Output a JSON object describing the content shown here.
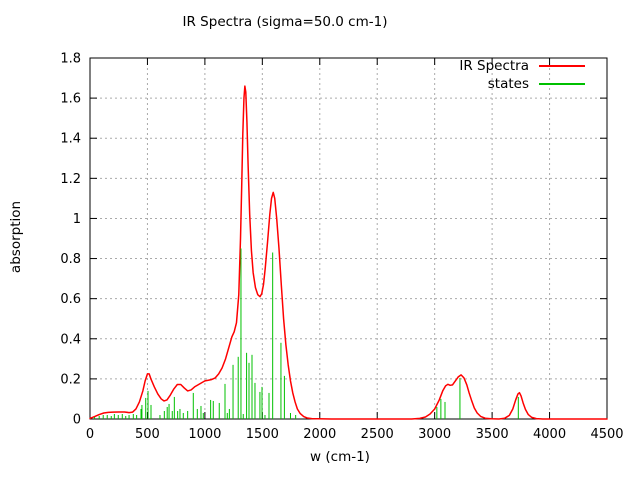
{
  "title": "IR Spectra (sigma=50.0 cm-1)",
  "axes": {
    "xlabel": "w (cm-1)",
    "ylabel": "absorption"
  },
  "colors": {
    "curve": "#ff0000",
    "states": "#00c000",
    "grid": "#aaaaaa",
    "border": "#000000",
    "background": "#ffffff"
  },
  "chart_data": {
    "type": "line",
    "title": "IR Spectra (sigma=50.0 cm-1)",
    "xlabel": "w (cm-1)",
    "ylabel": "absorption",
    "xlim": [
      0,
      4500
    ],
    "ylim": [
      0,
      1.8
    ],
    "x_ticks": [
      0,
      500,
      1000,
      1500,
      2000,
      2500,
      3000,
      3500,
      4000,
      4500
    ],
    "y_ticks": [
      0,
      0.2,
      0.4,
      0.6,
      0.8,
      1,
      1.2,
      1.4,
      1.6,
      1.8
    ],
    "grid": true,
    "legend_position": "top-right-inside",
    "series": [
      {
        "name": "IR Spectra",
        "type": "line",
        "color": "#ff0000",
        "points": [
          [
            0,
            0.003
          ],
          [
            40,
            0.012
          ],
          [
            80,
            0.022
          ],
          [
            120,
            0.03
          ],
          [
            160,
            0.033
          ],
          [
            200,
            0.034
          ],
          [
            250,
            0.035
          ],
          [
            300,
            0.035
          ],
          [
            340,
            0.032
          ],
          [
            370,
            0.034
          ],
          [
            400,
            0.05
          ],
          [
            430,
            0.085
          ],
          [
            460,
            0.14
          ],
          [
            480,
            0.19
          ],
          [
            500,
            0.225
          ],
          [
            515,
            0.225
          ],
          [
            530,
            0.2
          ],
          [
            560,
            0.16
          ],
          [
            590,
            0.125
          ],
          [
            620,
            0.1
          ],
          [
            645,
            0.09
          ],
          [
            670,
            0.095
          ],
          [
            700,
            0.12
          ],
          [
            730,
            0.15
          ],
          [
            760,
            0.172
          ],
          [
            790,
            0.172
          ],
          [
            820,
            0.155
          ],
          [
            850,
            0.14
          ],
          [
            880,
            0.145
          ],
          [
            910,
            0.16
          ],
          [
            940,
            0.17
          ],
          [
            970,
            0.18
          ],
          [
            1000,
            0.19
          ],
          [
            1030,
            0.193
          ],
          [
            1060,
            0.197
          ],
          [
            1090,
            0.205
          ],
          [
            1120,
            0.225
          ],
          [
            1150,
            0.255
          ],
          [
            1180,
            0.3
          ],
          [
            1210,
            0.36
          ],
          [
            1235,
            0.41
          ],
          [
            1255,
            0.435
          ],
          [
            1275,
            0.48
          ],
          [
            1295,
            0.62
          ],
          [
            1310,
            0.9
          ],
          [
            1320,
            1.15
          ],
          [
            1330,
            1.42
          ],
          [
            1340,
            1.6
          ],
          [
            1348,
            1.66
          ],
          [
            1356,
            1.63
          ],
          [
            1366,
            1.48
          ],
          [
            1376,
            1.27
          ],
          [
            1390,
            1.02
          ],
          [
            1405,
            0.84
          ],
          [
            1420,
            0.73
          ],
          [
            1440,
            0.655
          ],
          [
            1460,
            0.62
          ],
          [
            1480,
            0.61
          ],
          [
            1495,
            0.625
          ],
          [
            1510,
            0.67
          ],
          [
            1525,
            0.75
          ],
          [
            1545,
            0.88
          ],
          [
            1565,
            1.02
          ],
          [
            1580,
            1.1
          ],
          [
            1595,
            1.13
          ],
          [
            1608,
            1.1
          ],
          [
            1625,
            1.0
          ],
          [
            1645,
            0.85
          ],
          [
            1665,
            0.67
          ],
          [
            1685,
            0.5
          ],
          [
            1705,
            0.37
          ],
          [
            1725,
            0.27
          ],
          [
            1745,
            0.19
          ],
          [
            1765,
            0.13
          ],
          [
            1785,
            0.085
          ],
          [
            1805,
            0.05
          ],
          [
            1830,
            0.027
          ],
          [
            1860,
            0.012
          ],
          [
            1890,
            0.005
          ],
          [
            1930,
            0.002
          ],
          [
            1980,
            0.001
          ],
          [
            2100,
            0
          ],
          [
            2800,
            0
          ],
          [
            2870,
            0.003
          ],
          [
            2920,
            0.01
          ],
          [
            2960,
            0.025
          ],
          [
            3000,
            0.05
          ],
          [
            3040,
            0.095
          ],
          [
            3070,
            0.14
          ],
          [
            3095,
            0.165
          ],
          [
            3115,
            0.173
          ],
          [
            3135,
            0.168
          ],
          [
            3155,
            0.17
          ],
          [
            3180,
            0.19
          ],
          [
            3205,
            0.21
          ],
          [
            3230,
            0.22
          ],
          [
            3255,
            0.205
          ],
          [
            3280,
            0.17
          ],
          [
            3300,
            0.13
          ],
          [
            3320,
            0.095
          ],
          [
            3345,
            0.055
          ],
          [
            3370,
            0.03
          ],
          [
            3400,
            0.013
          ],
          [
            3440,
            0.004
          ],
          [
            3490,
            0.001
          ],
          [
            3560,
            0
          ],
          [
            3610,
            0.004
          ],
          [
            3650,
            0.018
          ],
          [
            3680,
            0.05
          ],
          [
            3705,
            0.095
          ],
          [
            3725,
            0.125
          ],
          [
            3738,
            0.131
          ],
          [
            3752,
            0.115
          ],
          [
            3770,
            0.08
          ],
          [
            3790,
            0.048
          ],
          [
            3815,
            0.022
          ],
          [
            3845,
            0.008
          ],
          [
            3885,
            0.002
          ],
          [
            3940,
            0
          ],
          [
            4500,
            0
          ]
        ]
      },
      {
        "name": "states",
        "type": "impulses",
        "color": "#00c000",
        "points": [
          [
            40,
            0.01
          ],
          [
            80,
            0.015
          ],
          [
            115,
            0.02
          ],
          [
            150,
            0.02
          ],
          [
            185,
            0.015
          ],
          [
            212,
            0.025
          ],
          [
            246,
            0.02
          ],
          [
            281,
            0.025
          ],
          [
            311,
            0.015
          ],
          [
            340,
            0.02
          ],
          [
            377,
            0.025
          ],
          [
            406,
            0.02
          ],
          [
            444,
            0.05
          ],
          [
            452,
            0.07
          ],
          [
            485,
            0.105
          ],
          [
            505,
            0.14
          ],
          [
            531,
            0.07
          ],
          [
            609,
            0.02
          ],
          [
            647,
            0.04
          ],
          [
            672,
            0.06
          ],
          [
            688,
            0.075
          ],
          [
            716,
            0.04
          ],
          [
            734,
            0.11
          ],
          [
            763,
            0.04
          ],
          [
            783,
            0.05
          ],
          [
            812,
            0.03
          ],
          [
            850,
            0.04
          ],
          [
            899,
            0.13
          ],
          [
            934,
            0.05
          ],
          [
            966,
            0.065
          ],
          [
            986,
            0.03
          ],
          [
            1050,
            0.095
          ],
          [
            1073,
            0.09
          ],
          [
            1125,
            0.08
          ],
          [
            1175,
            0.175
          ],
          [
            1195,
            0.03
          ],
          [
            1213,
            0.05
          ],
          [
            1245,
            0.27
          ],
          [
            1290,
            0.31
          ],
          [
            1314,
            0.85
          ],
          [
            1334,
            0.025
          ],
          [
            1363,
            0.33
          ],
          [
            1384,
            0.28
          ],
          [
            1410,
            0.32
          ],
          [
            1436,
            0.18
          ],
          [
            1479,
            0.135
          ],
          [
            1497,
            0.16
          ],
          [
            1523,
            0.02
          ],
          [
            1558,
            0.13
          ],
          [
            1590,
            0.83
          ],
          [
            1662,
            0.38
          ],
          [
            1692,
            0.215
          ],
          [
            1745,
            0.03
          ],
          [
            1790,
            0.02
          ],
          [
            3019,
            0.06
          ],
          [
            3054,
            0.1
          ],
          [
            3090,
            0.085
          ],
          [
            3220,
            0.205
          ],
          [
            3728,
            0.11
          ]
        ]
      }
    ]
  }
}
